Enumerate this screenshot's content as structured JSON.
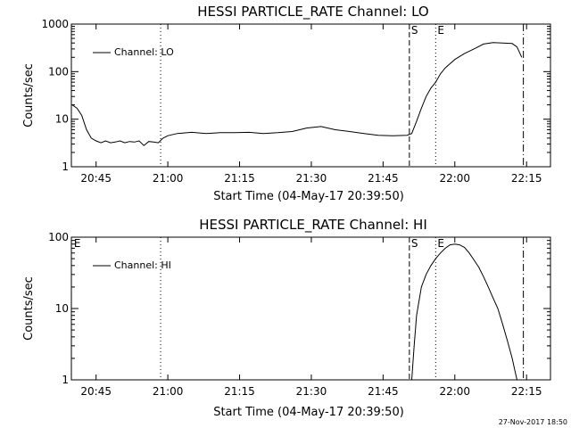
{
  "chart_data": [
    {
      "type": "line",
      "title": "HESSI PARTICLE_RATE Channel: LO",
      "xlabel": "Start Time (04-May-17 20:39:50)",
      "ylabel": "Counts/sec",
      "yscale": "log",
      "xlim": [
        "20:39:50",
        "22:20:00"
      ],
      "ylim": [
        1,
        1000
      ],
      "xticks": [
        "20:45",
        "21:00",
        "21:15",
        "21:30",
        "21:45",
        "22:00",
        "22:15"
      ],
      "yticks": [
        "1",
        "10",
        "100",
        "1000"
      ],
      "legend": {
        "label": "Channel: LO",
        "position": "top-left"
      },
      "markers": [
        {
          "time": "20:58:30",
          "style": "dotted",
          "label": ""
        },
        {
          "time": "21:50:30",
          "style": "dashed",
          "label": "S"
        },
        {
          "time": "21:56:00",
          "style": "dotted",
          "label": "E"
        },
        {
          "time": "22:14:20",
          "style": "dashdot",
          "label": ""
        }
      ],
      "series": [
        {
          "name": "Channel: LO",
          "x": [
            "20:40:00",
            "20:41:00",
            "20:42:00",
            "20:43:00",
            "20:44:00",
            "20:45:00",
            "20:46:00",
            "20:47:00",
            "20:48:00",
            "20:49:00",
            "20:50:00",
            "20:51:00",
            "20:52:00",
            "20:53:00",
            "20:54:00",
            "20:55:00",
            "20:56:00",
            "20:57:00",
            "20:58:00",
            "20:59:00",
            "21:00:00",
            "21:02:00",
            "21:05:00",
            "21:08:00",
            "21:11:00",
            "21:14:00",
            "21:17:00",
            "21:20:00",
            "21:23:00",
            "21:26:00",
            "21:29:00",
            "21:32:00",
            "21:35:00",
            "21:38:00",
            "21:41:00",
            "21:44:00",
            "21:47:00",
            "21:50:00",
            "21:51:00",
            "21:52:00",
            "21:53:00",
            "21:54:00",
            "21:55:00",
            "21:56:00",
            "21:57:00",
            "21:58:00",
            "22:00:00",
            "22:02:00",
            "22:04:00",
            "22:06:00",
            "22:08:00",
            "22:10:00",
            "22:12:00",
            "22:13:00",
            "22:14:00"
          ],
          "y": [
            20,
            17,
            12,
            6,
            4,
            3.5,
            3.2,
            3.5,
            3.2,
            3.3,
            3.5,
            3.2,
            3.4,
            3.3,
            3.5,
            2.8,
            3.4,
            3.3,
            3.2,
            4,
            4.5,
            5,
            5.3,
            5,
            5.2,
            5.2,
            5.3,
            5,
            5.2,
            5.5,
            6.5,
            7,
            6,
            5.5,
            5,
            4.6,
            4.5,
            4.6,
            5,
            9,
            17,
            30,
            45,
            60,
            90,
            120,
            180,
            240,
            300,
            380,
            410,
            400,
            390,
            330,
            200
          ]
        }
      ]
    },
    {
      "type": "line",
      "title": "HESSI PARTICLE_RATE Channel: HI",
      "xlabel": "Start Time (04-May-17 20:39:50)",
      "ylabel": "Counts/sec",
      "yscale": "log",
      "xlim": [
        "20:39:50",
        "22:20:00"
      ],
      "ylim": [
        1,
        100
      ],
      "xticks": [
        "20:45",
        "21:00",
        "21:15",
        "21:30",
        "21:45",
        "22:00",
        "22:15"
      ],
      "yticks": [
        "1",
        "10",
        "100"
      ],
      "legend": {
        "label": "Channel: HI",
        "position": "top-left"
      },
      "markers": [
        {
          "time": "20:40:00",
          "style": "none",
          "label": "E"
        },
        {
          "time": "20:58:30",
          "style": "dotted",
          "label": ""
        },
        {
          "time": "21:50:30",
          "style": "dashed",
          "label": "S"
        },
        {
          "time": "21:56:00",
          "style": "dotted",
          "label": "E"
        },
        {
          "time": "22:14:20",
          "style": "dashdot",
          "label": ""
        }
      ],
      "series": [
        {
          "name": "Channel: HI",
          "x": [
            "21:51:00",
            "21:51:30",
            "21:52:00",
            "21:53:00",
            "21:54:00",
            "21:55:00",
            "21:56:00",
            "21:57:00",
            "21:58:00",
            "21:59:00",
            "22:00:00",
            "22:01:00",
            "22:02:00",
            "22:03:00",
            "22:04:00",
            "22:05:00",
            "22:06:00",
            "22:07:00",
            "22:08:00",
            "22:09:00",
            "22:10:00",
            "22:11:00",
            "22:12:00",
            "22:12:30",
            "22:13:00"
          ],
          "y": [
            1,
            3,
            8,
            20,
            30,
            40,
            50,
            60,
            70,
            78,
            80,
            78,
            72,
            60,
            48,
            38,
            28,
            20,
            14,
            10,
            6,
            3.5,
            2,
            1.4,
            1
          ]
        }
      ]
    }
  ],
  "footer": {
    "timestamp": "27-Nov-2017 18:50"
  }
}
